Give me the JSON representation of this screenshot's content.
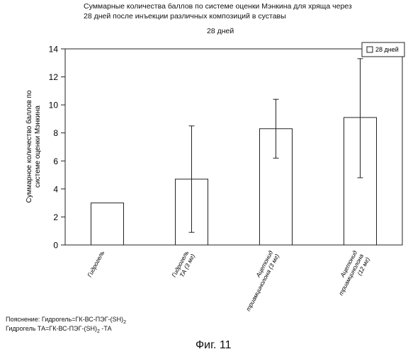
{
  "title_line1": "Суммарные количества баллов по системе оценки Мэнкина для хряща через",
  "title_line2": "28 дней после инъекции различных композиций в суставы",
  "chart_data": {
    "type": "bar",
    "subtitle": "28 дней",
    "ylabel": "Суммарное количество баллов по системе оценки Мэнкина",
    "ylim": [
      0,
      14
    ],
    "yticks": [
      0,
      2,
      4,
      6,
      8,
      10,
      12,
      14
    ],
    "categories": [
      "Гидрогель",
      "Гидрогель ТА (3 мг)",
      "Ацетонид триамцинолона (3 мг)",
      "Ацетонид триамцинолона (12 мг)"
    ],
    "series": [
      {
        "name": "28 дней",
        "values": [
          3.0,
          4.7,
          8.3,
          9.1
        ],
        "error_low": [
          null,
          0.9,
          6.2,
          4.8
        ],
        "error_high": [
          null,
          8.5,
          10.4,
          13.3
        ]
      }
    ],
    "legend": "top-right",
    "grid": false
  },
  "note": {
    "line1_prefix": "Пояснение: Гидрогель=ГК-ВС-ПЭГ-(SH)",
    "line1_sub": "2",
    "line2_prefix": "Гидрогель ТА=ГК-ВС-ПЭГ-(SH)",
    "line2_sub": "2",
    "line2_suffix": " -ТА"
  },
  "figure_label": "Фиг. 11"
}
